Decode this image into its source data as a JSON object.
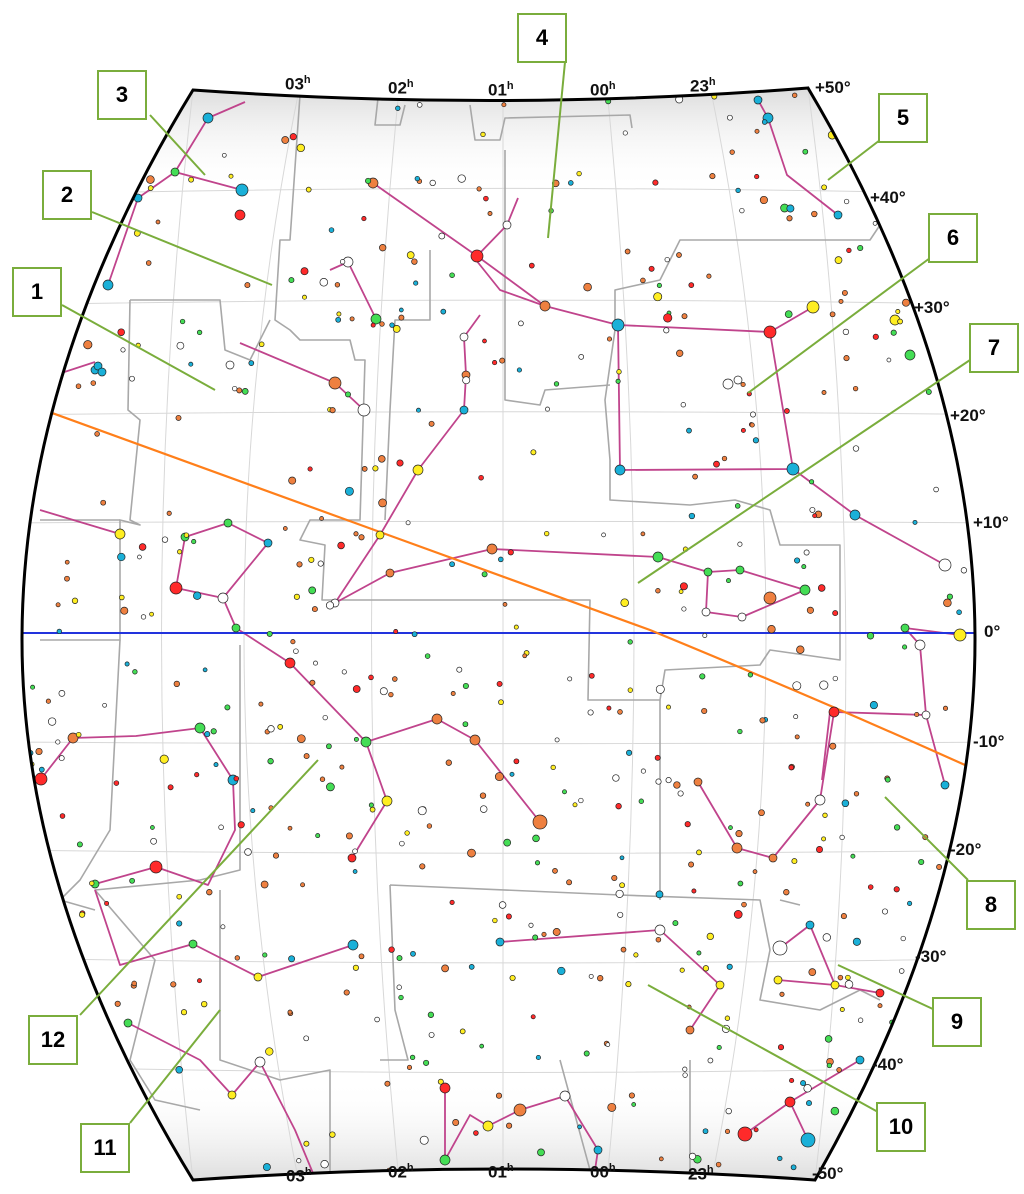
{
  "colors": {
    "constellation_line": "#c0448c",
    "ecliptic": "#ff7f1a",
    "equator": "#2233dd",
    "boundary": "#a8a8a8",
    "grid": "#d8d8d8",
    "callout_border": "#7aad3c",
    "star_palette": [
      "#ff2a2a",
      "#ee8040",
      "#ffee22",
      "#44dd55",
      "#1ab0d8",
      "#ffffff",
      "#dd44ff"
    ]
  },
  "ra_labels_top": [
    {
      "hour": "03",
      "sup": "h"
    },
    {
      "hour": "02",
      "sup": "h"
    },
    {
      "hour": "01",
      "sup": "h"
    },
    {
      "hour": "00",
      "sup": "h"
    },
    {
      "hour": "23",
      "sup": "h"
    }
  ],
  "ra_labels_bottom": [
    {
      "hour": "03",
      "sup": "h"
    },
    {
      "hour": "02",
      "sup": "h"
    },
    {
      "hour": "01",
      "sup": "h"
    },
    {
      "hour": "00",
      "sup": "h"
    },
    {
      "hour": "23",
      "sup": "h"
    }
  ],
  "dec_labels": [
    "+50°",
    "+40°",
    "+30°",
    "+20°",
    "+10°",
    "0°",
    "-10°",
    "-20°",
    "-30°",
    "-40°",
    "-50°"
  ],
  "callouts": [
    "1",
    "2",
    "3",
    "4",
    "5",
    "6",
    "7",
    "8",
    "9",
    "10",
    "11",
    "12"
  ]
}
